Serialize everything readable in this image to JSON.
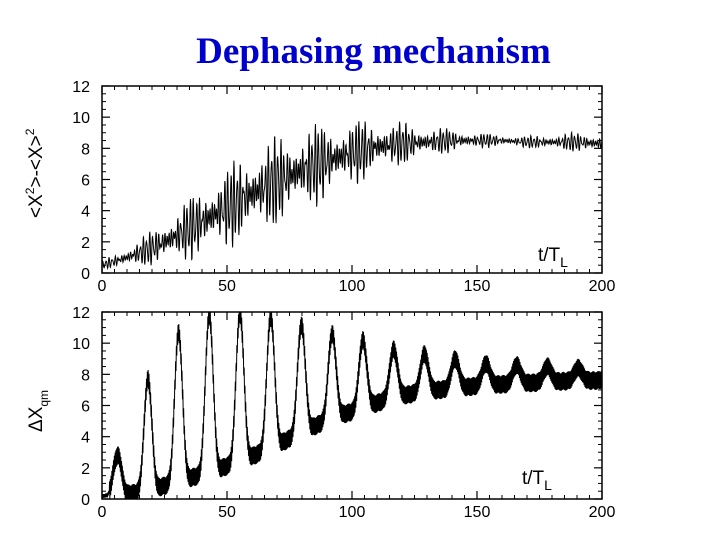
{
  "title": "Dephasing mechanism",
  "chart_data": [
    {
      "type": "line",
      "ylabel_parts": [
        "<X",
        "2",
        ">-<X>",
        "2"
      ],
      "xlabel_parts": [
        "t/T",
        "L"
      ],
      "xlim": [
        0,
        200
      ],
      "ylim": [
        0,
        12
      ],
      "xticks": [
        0,
        50,
        100,
        150,
        200
      ],
      "yticks": [
        0,
        2,
        4,
        6,
        8,
        10,
        12
      ],
      "grid": false,
      "color": "#000000",
      "series": [
        {
          "x": [
            0,
            10,
            20,
            30,
            40,
            50,
            60,
            70,
            80,
            90,
            100,
            110,
            120,
            130,
            140,
            150,
            160,
            170,
            180,
            190,
            200
          ],
          "mean": [
            0.5,
            1.0,
            1.6,
            2.4,
            3.3,
            4.2,
            5.1,
            5.9,
            6.6,
            7.2,
            7.7,
            8.1,
            8.3,
            8.4,
            8.5,
            8.5,
            8.5,
            8.4,
            8.4,
            8.4,
            8.3
          ],
          "amplitude": [
            0.2,
            0.5,
            0.9,
            1.4,
            1.8,
            2.1,
            2.3,
            2.3,
            2.2,
            2.0,
            1.7,
            1.4,
            1.1,
            0.8,
            0.6,
            0.4,
            0.3,
            0.3,
            0.4,
            0.5,
            0.5
          ]
        }
      ]
    },
    {
      "type": "line",
      "ylabel_parts": [
        "ΔX",
        "qm"
      ],
      "xlabel_parts": [
        "t/T",
        "L"
      ],
      "xlim": [
        0,
        200
      ],
      "ylim": [
        0,
        12
      ],
      "xticks": [
        0,
        50,
        100,
        150,
        200
      ],
      "yticks": [
        0,
        2,
        4,
        6,
        8,
        10,
        12
      ],
      "grid": false,
      "color": "#000000",
      "series": [
        {
          "revival_period": 12.3,
          "peaks_t": [
            6,
            18,
            30,
            43,
            55,
            67,
            79,
            92,
            104,
            116,
            129,
            141,
            153,
            165,
            178,
            190
          ],
          "peaks_y": [
            2.7,
            7.6,
            10.6,
            11.8,
            11.9,
            11.7,
            11.2,
            10.6,
            10.2,
            9.6,
            9.3,
            9.0,
            8.7,
            8.6,
            8.5,
            8.4
          ],
          "troughs_y": [
            0.2,
            0.5,
            1.1,
            1.7,
            2.4,
            3.2,
            4.2,
            5.2,
            5.8,
            6.5,
            6.9,
            7.1,
            7.3,
            7.4,
            7.5,
            7.6
          ],
          "fast_noise_amplitude": 0.6
        }
      ]
    }
  ]
}
